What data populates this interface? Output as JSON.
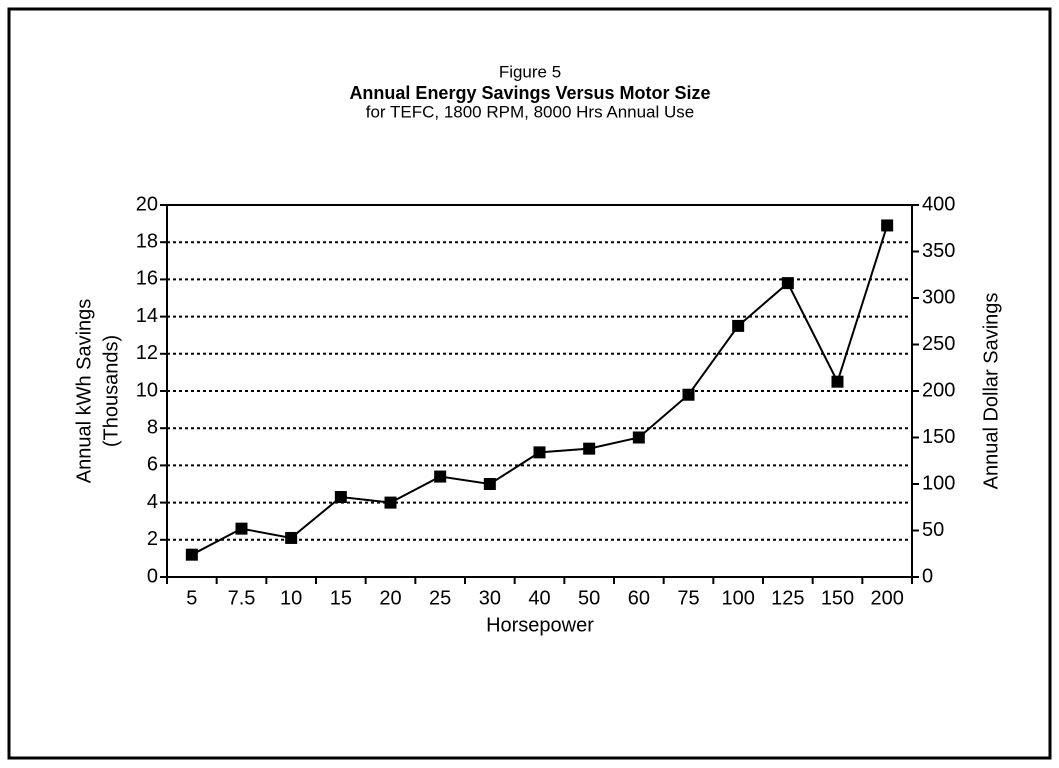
{
  "chart_data": {
    "type": "line",
    "figure": "Figure 5",
    "title": "Annual Energy Savings Versus Motor Size",
    "subtitle": "for TEFC, 1800 RPM, 8000 Hrs Annual Use",
    "xlabel": "Horsepower",
    "ylabel": [
      "Annual kWh Savings",
      "(Thousands)"
    ],
    "y2label": "Annual Dollar Savings",
    "categories": [
      "5",
      "7.5",
      "10",
      "15",
      "20",
      "25",
      "30",
      "40",
      "50",
      "60",
      "75",
      "100",
      "125",
      "150",
      "200"
    ],
    "series": [
      {
        "color": "#000000",
        "values": [
          1.2,
          2.6,
          2.1,
          4.3,
          4.0,
          5.4,
          5.0,
          6.7,
          6.9,
          7.5,
          9.8,
          13.5,
          15.8,
          10.5,
          18.9
        ]
      }
    ],
    "ylim": [
      0,
      20
    ],
    "yticks": [
      0,
      2,
      4,
      6,
      8,
      10,
      12,
      14,
      16,
      18,
      20
    ],
    "y2lim": [
      0,
      400
    ],
    "y2ticks": [
      0,
      50,
      100,
      150,
      200,
      250,
      300,
      350,
      400
    ],
    "grid": true
  }
}
